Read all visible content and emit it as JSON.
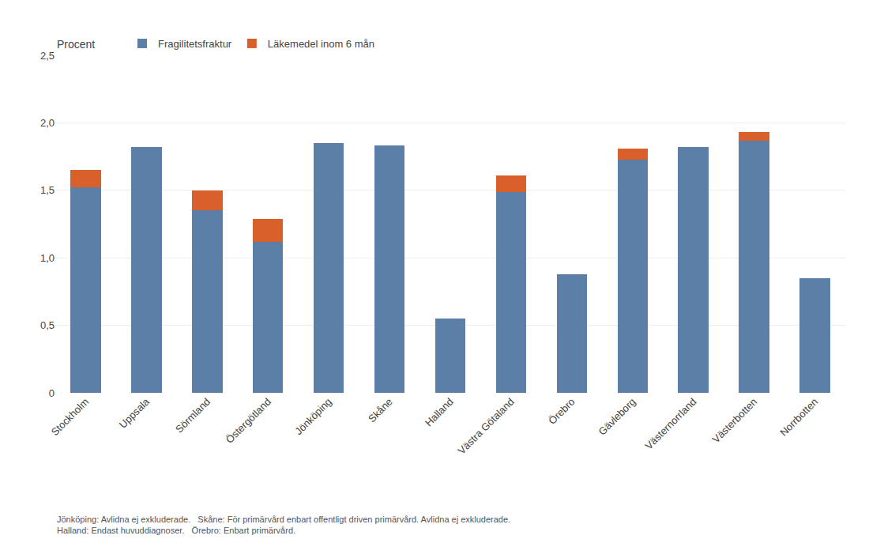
{
  "chart_data": {
    "type": "bar",
    "stacked": true,
    "categories": [
      "Stockholm",
      "Uppsala",
      "Sörmland",
      "Östergötland",
      "Jönköping",
      "Skåne",
      "Halland",
      "Västra Götaland",
      "Örebro",
      "Gävleborg",
      "Västernorrland",
      "Västerbotten",
      "Norrbotten"
    ],
    "series": [
      {
        "name": "Fragilitetsfraktur",
        "color": "#5b7fa6",
        "values": [
          1.52,
          1.82,
          1.35,
          1.12,
          1.85,
          1.83,
          0.55,
          1.49,
          0.88,
          1.73,
          1.82,
          1.87,
          0.85
        ]
      },
      {
        "name": "Läkemedel inom 6 mån",
        "color": "#d95f2b",
        "values": [
          0.13,
          0.0,
          0.15,
          0.17,
          0.0,
          0.0,
          0.0,
          0.12,
          0.0,
          0.08,
          0.0,
          0.06,
          0.0
        ]
      }
    ],
    "ylabel": "Procent",
    "ylim": [
      0,
      2.5
    ],
    "yticks": [
      0,
      {
        "value": 0.5,
        "label": "0,5"
      },
      {
        "value": 1.0,
        "label": "1,0"
      },
      {
        "value": 1.5,
        "label": "1,5"
      },
      {
        "value": 2.0,
        "label": "2,0"
      },
      {
        "value": 2.5,
        "label": "2,5"
      }
    ],
    "grid": true,
    "legend": "top",
    "footnote": "Jönköping: Avlidna ej exkluderade.   Skåne: För primärvård enbart offentligt driven primärvård. Avlidna ej exkluderade.\nHalland: Endast huvuddiagnoser.   Örebro: Enbart primärvård."
  }
}
